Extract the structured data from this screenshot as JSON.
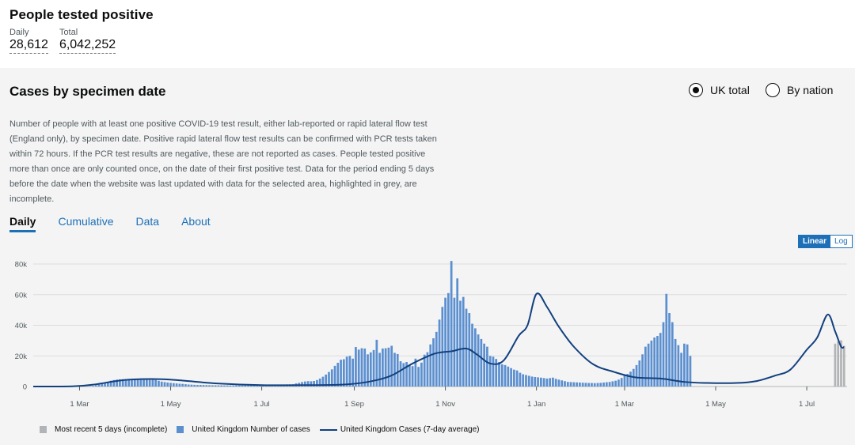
{
  "headline": {
    "title": "People tested positive",
    "daily_label": "Daily",
    "daily_value": "28,612",
    "total_label": "Total",
    "total_value": "6,042,252"
  },
  "card": {
    "title": "Cases by specimen date",
    "description": "Number of people with at least one positive COVID-19 test result, either lab-reported or rapid lateral flow test (England only), by specimen date. Positive rapid lateral flow test results can be confirmed with PCR tests taken within 72 hours. If the PCR test results are negative, these are not reported as cases. People tested positive more than once are only counted once, on the date of their first positive test. Data for the period ending 5 days before the date when the website was last updated with data for the selected area, highlighted in grey, are incomplete.",
    "area_options": [
      {
        "label": "UK total",
        "selected": true
      },
      {
        "label": "By nation",
        "selected": false
      }
    ],
    "tabs": [
      {
        "label": "Daily",
        "active": true
      },
      {
        "label": "Cumulative",
        "active": false
      },
      {
        "label": "Data",
        "active": false
      },
      {
        "label": "About",
        "active": false
      }
    ],
    "scale": {
      "linear": "Linear",
      "log": "Log",
      "selected": "Linear"
    }
  },
  "colors": {
    "bar": "#5b8fd0",
    "incomplete": "#b1b4b6",
    "average_line": "#12407f",
    "link": "#1d70b8"
  },
  "chart_data": {
    "type": "bar",
    "title": "",
    "ylim": [
      0,
      80000
    ],
    "yticks": [
      0,
      20000,
      40000,
      60000,
      80000
    ],
    "ytick_labels": [
      "0",
      "20k",
      "40k",
      "60k",
      "80k"
    ],
    "xticks": [
      {
        "date": "2020-03-01",
        "label": "1 Mar"
      },
      {
        "date": "2020-05-01",
        "label": "1 May"
      },
      {
        "date": "2020-07-01",
        "label": "1 Jul"
      },
      {
        "date": "2020-09-01",
        "label": "1 Sep"
      },
      {
        "date": "2020-11-01",
        "label": "1 Nov"
      },
      {
        "date": "2021-01-01",
        "label": "1 Jan"
      },
      {
        "date": "2021-03-01",
        "label": "1 Mar"
      },
      {
        "date": "2021-05-01",
        "label": "1 May"
      },
      {
        "date": "2021-07-01",
        "label": "1 Jul"
      }
    ],
    "grid": "horizontal",
    "x_start": "2020-01-30",
    "x_end": "2021-07-28",
    "series": [
      {
        "name": "United Kingdom Number of cases",
        "type": "bar",
        "sample_step_days": 2,
        "start": "2020-01-30",
        "values": [
          0,
          0,
          0,
          0,
          0,
          0,
          0,
          0,
          0,
          0,
          0,
          0,
          0,
          0,
          0,
          0,
          0,
          0,
          0,
          200,
          400,
          800,
          1300,
          1800,
          2300,
          3000,
          3800,
          4200,
          4500,
          4700,
          4800,
          4900,
          5000,
          4900,
          4800,
          5000,
          4900,
          5100,
          4900,
          5200,
          4700,
          4300,
          3700,
          3200,
          2900,
          2600,
          2400,
          2200,
          2000,
          1800,
          1700,
          1500,
          1300,
          1200,
          1100,
          1000,
          1000,
          950,
          900,
          850,
          800,
          800,
          750,
          750,
          700,
          700,
          650,
          650,
          700,
          700,
          700,
          750,
          800,
          800,
          850,
          900,
          950,
          1000,
          1050,
          1100,
          1150,
          1200,
          1250,
          1300,
          1300,
          1350,
          1400,
          1450,
          2000,
          2400,
          2900,
          3300,
          3500,
          3400,
          3600,
          4200,
          5200,
          6400,
          7800,
          9500,
          11200,
          13500,
          15500,
          17500,
          17800,
          19500,
          20000,
          18200,
          25800,
          24100,
          25000,
          24800,
          21000,
          22300,
          23800,
          30500,
          22000,
          24800,
          25000,
          25400,
          26600,
          22000,
          21200,
          16500,
          15300,
          16000,
          13700,
          13300,
          18200,
          12800,
          15600,
          20800,
          22400,
          27500,
          31500,
          35700,
          43700,
          52000,
          58000,
          61000,
          82000,
          58000,
          70600,
          56000,
          58500,
          50800,
          48000,
          41000,
          38000,
          34000,
          31000,
          28000,
          26000,
          20000,
          19500,
          18000,
          16000,
          14500,
          14000,
          13000,
          12000,
          11000,
          10500,
          9000,
          8000,
          7500,
          7000,
          6500,
          6200,
          6000,
          5800,
          5500,
          5200,
          5500,
          5800,
          5000,
          4500,
          4000,
          3500,
          3000,
          2900,
          2800,
          2700,
          2600,
          2500,
          2400,
          2300,
          2300,
          2200,
          2300,
          2400,
          2600,
          2800,
          3000,
          3400,
          3800,
          4500,
          5600,
          7100,
          8200,
          9700,
          11500,
          14000,
          17000,
          21000,
          26000,
          28000,
          30000,
          32000,
          33000,
          35000,
          42000,
          60500,
          48000,
          42000,
          31000,
          27000,
          22000,
          28000,
          27500,
          20000
        ]
      },
      {
        "name": "Most recent 5 days (incomplete)",
        "type": "bar",
        "dates": [
          "2021-07-20",
          "2021-07-22",
          "2021-07-24",
          "2021-07-26"
        ],
        "values": [
          28000,
          29500,
          30200,
          26500
        ]
      },
      {
        "name": "United Kingdom Cases (7-day average)",
        "type": "line",
        "points": [
          {
            "date": "2020-01-30",
            "value": 0
          },
          {
            "date": "2020-02-25",
            "value": 100
          },
          {
            "date": "2020-03-10",
            "value": 1200
          },
          {
            "date": "2020-03-25",
            "value": 3500
          },
          {
            "date": "2020-04-05",
            "value": 4600
          },
          {
            "date": "2020-04-25",
            "value": 4800
          },
          {
            "date": "2020-05-10",
            "value": 3800
          },
          {
            "date": "2020-06-01",
            "value": 2000
          },
          {
            "date": "2020-07-01",
            "value": 900
          },
          {
            "date": "2020-08-01",
            "value": 900
          },
          {
            "date": "2020-08-25",
            "value": 1300
          },
          {
            "date": "2020-09-10",
            "value": 3000
          },
          {
            "date": "2020-09-25",
            "value": 6800
          },
          {
            "date": "2020-10-10",
            "value": 15000
          },
          {
            "date": "2020-10-25",
            "value": 21500
          },
          {
            "date": "2020-11-05",
            "value": 23000
          },
          {
            "date": "2020-11-15",
            "value": 24800
          },
          {
            "date": "2020-11-22",
            "value": 21000
          },
          {
            "date": "2020-12-01",
            "value": 15000
          },
          {
            "date": "2020-12-10",
            "value": 17000
          },
          {
            "date": "2020-12-20",
            "value": 33000
          },
          {
            "date": "2020-12-26",
            "value": 40000
          },
          {
            "date": "2021-01-01",
            "value": 60500
          },
          {
            "date": "2021-01-08",
            "value": 52000
          },
          {
            "date": "2021-01-16",
            "value": 39000
          },
          {
            "date": "2021-01-26",
            "value": 26000
          },
          {
            "date": "2021-02-08",
            "value": 14500
          },
          {
            "date": "2021-02-22",
            "value": 9500
          },
          {
            "date": "2021-03-08",
            "value": 6000
          },
          {
            "date": "2021-03-25",
            "value": 5200
          },
          {
            "date": "2021-04-10",
            "value": 3000
          },
          {
            "date": "2021-04-25",
            "value": 2300
          },
          {
            "date": "2021-05-15",
            "value": 2300
          },
          {
            "date": "2021-05-28",
            "value": 3500
          },
          {
            "date": "2021-06-10",
            "value": 7200
          },
          {
            "date": "2021-06-20",
            "value": 11000
          },
          {
            "date": "2021-07-01",
            "value": 24000
          },
          {
            "date": "2021-07-08",
            "value": 32000
          },
          {
            "date": "2021-07-15",
            "value": 47000
          },
          {
            "date": "2021-07-20",
            "value": 36000
          },
          {
            "date": "2021-07-24",
            "value": 26000
          },
          {
            "date": "2021-07-26",
            "value": 25800
          }
        ]
      }
    ],
    "legend": [
      {
        "label": "Most recent 5 days (incomplete)",
        "kind": "incomplete"
      },
      {
        "label": "United Kingdom Number of cases",
        "kind": "bar"
      },
      {
        "label": "United Kingdom Cases (7-day average)",
        "kind": "line"
      }
    ]
  }
}
